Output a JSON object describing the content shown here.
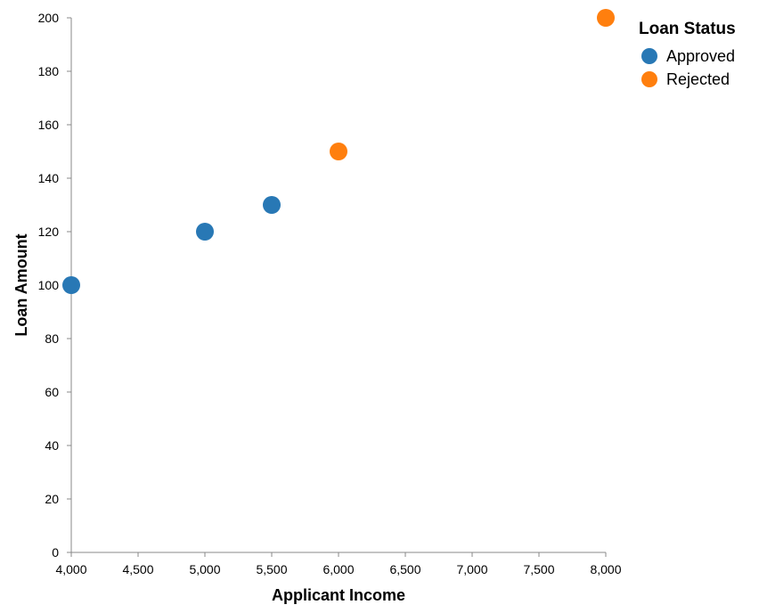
{
  "chart_data": {
    "type": "scatter",
    "xlabel": "Applicant Income",
    "ylabel": "Loan Amount",
    "xlim": [
      4000,
      8000
    ],
    "ylim": [
      0,
      200
    ],
    "x_ticks": [
      4000,
      4500,
      5000,
      5500,
      6000,
      6500,
      7000,
      7500,
      8000
    ],
    "x_tick_labels": [
      "4,000",
      "4,500",
      "5,000",
      "5,500",
      "6,000",
      "6,500",
      "7,000",
      "7,500",
      "8,000"
    ],
    "y_ticks": [
      0,
      20,
      40,
      60,
      80,
      100,
      120,
      140,
      160,
      180,
      200
    ],
    "y_tick_labels": [
      "0",
      "20",
      "40",
      "60",
      "80",
      "100",
      "120",
      "140",
      "160",
      "180",
      "200"
    ],
    "grid": false,
    "legend": {
      "title": "Loan Status",
      "placement": "top-right",
      "entries": [
        {
          "name": "Approved",
          "color": "#2878b5"
        },
        {
          "name": "Rejected",
          "color": "#ff7f0e"
        }
      ]
    },
    "series": [
      {
        "name": "Approved",
        "color": "#2878b5",
        "points": [
          {
            "x": 4000,
            "y": 100
          },
          {
            "x": 5000,
            "y": 120
          },
          {
            "x": 5500,
            "y": 130
          }
        ]
      },
      {
        "name": "Rejected",
        "color": "#ff7f0e",
        "points": [
          {
            "x": 6000,
            "y": 150
          },
          {
            "x": 8000,
            "y": 200
          }
        ]
      }
    ]
  }
}
